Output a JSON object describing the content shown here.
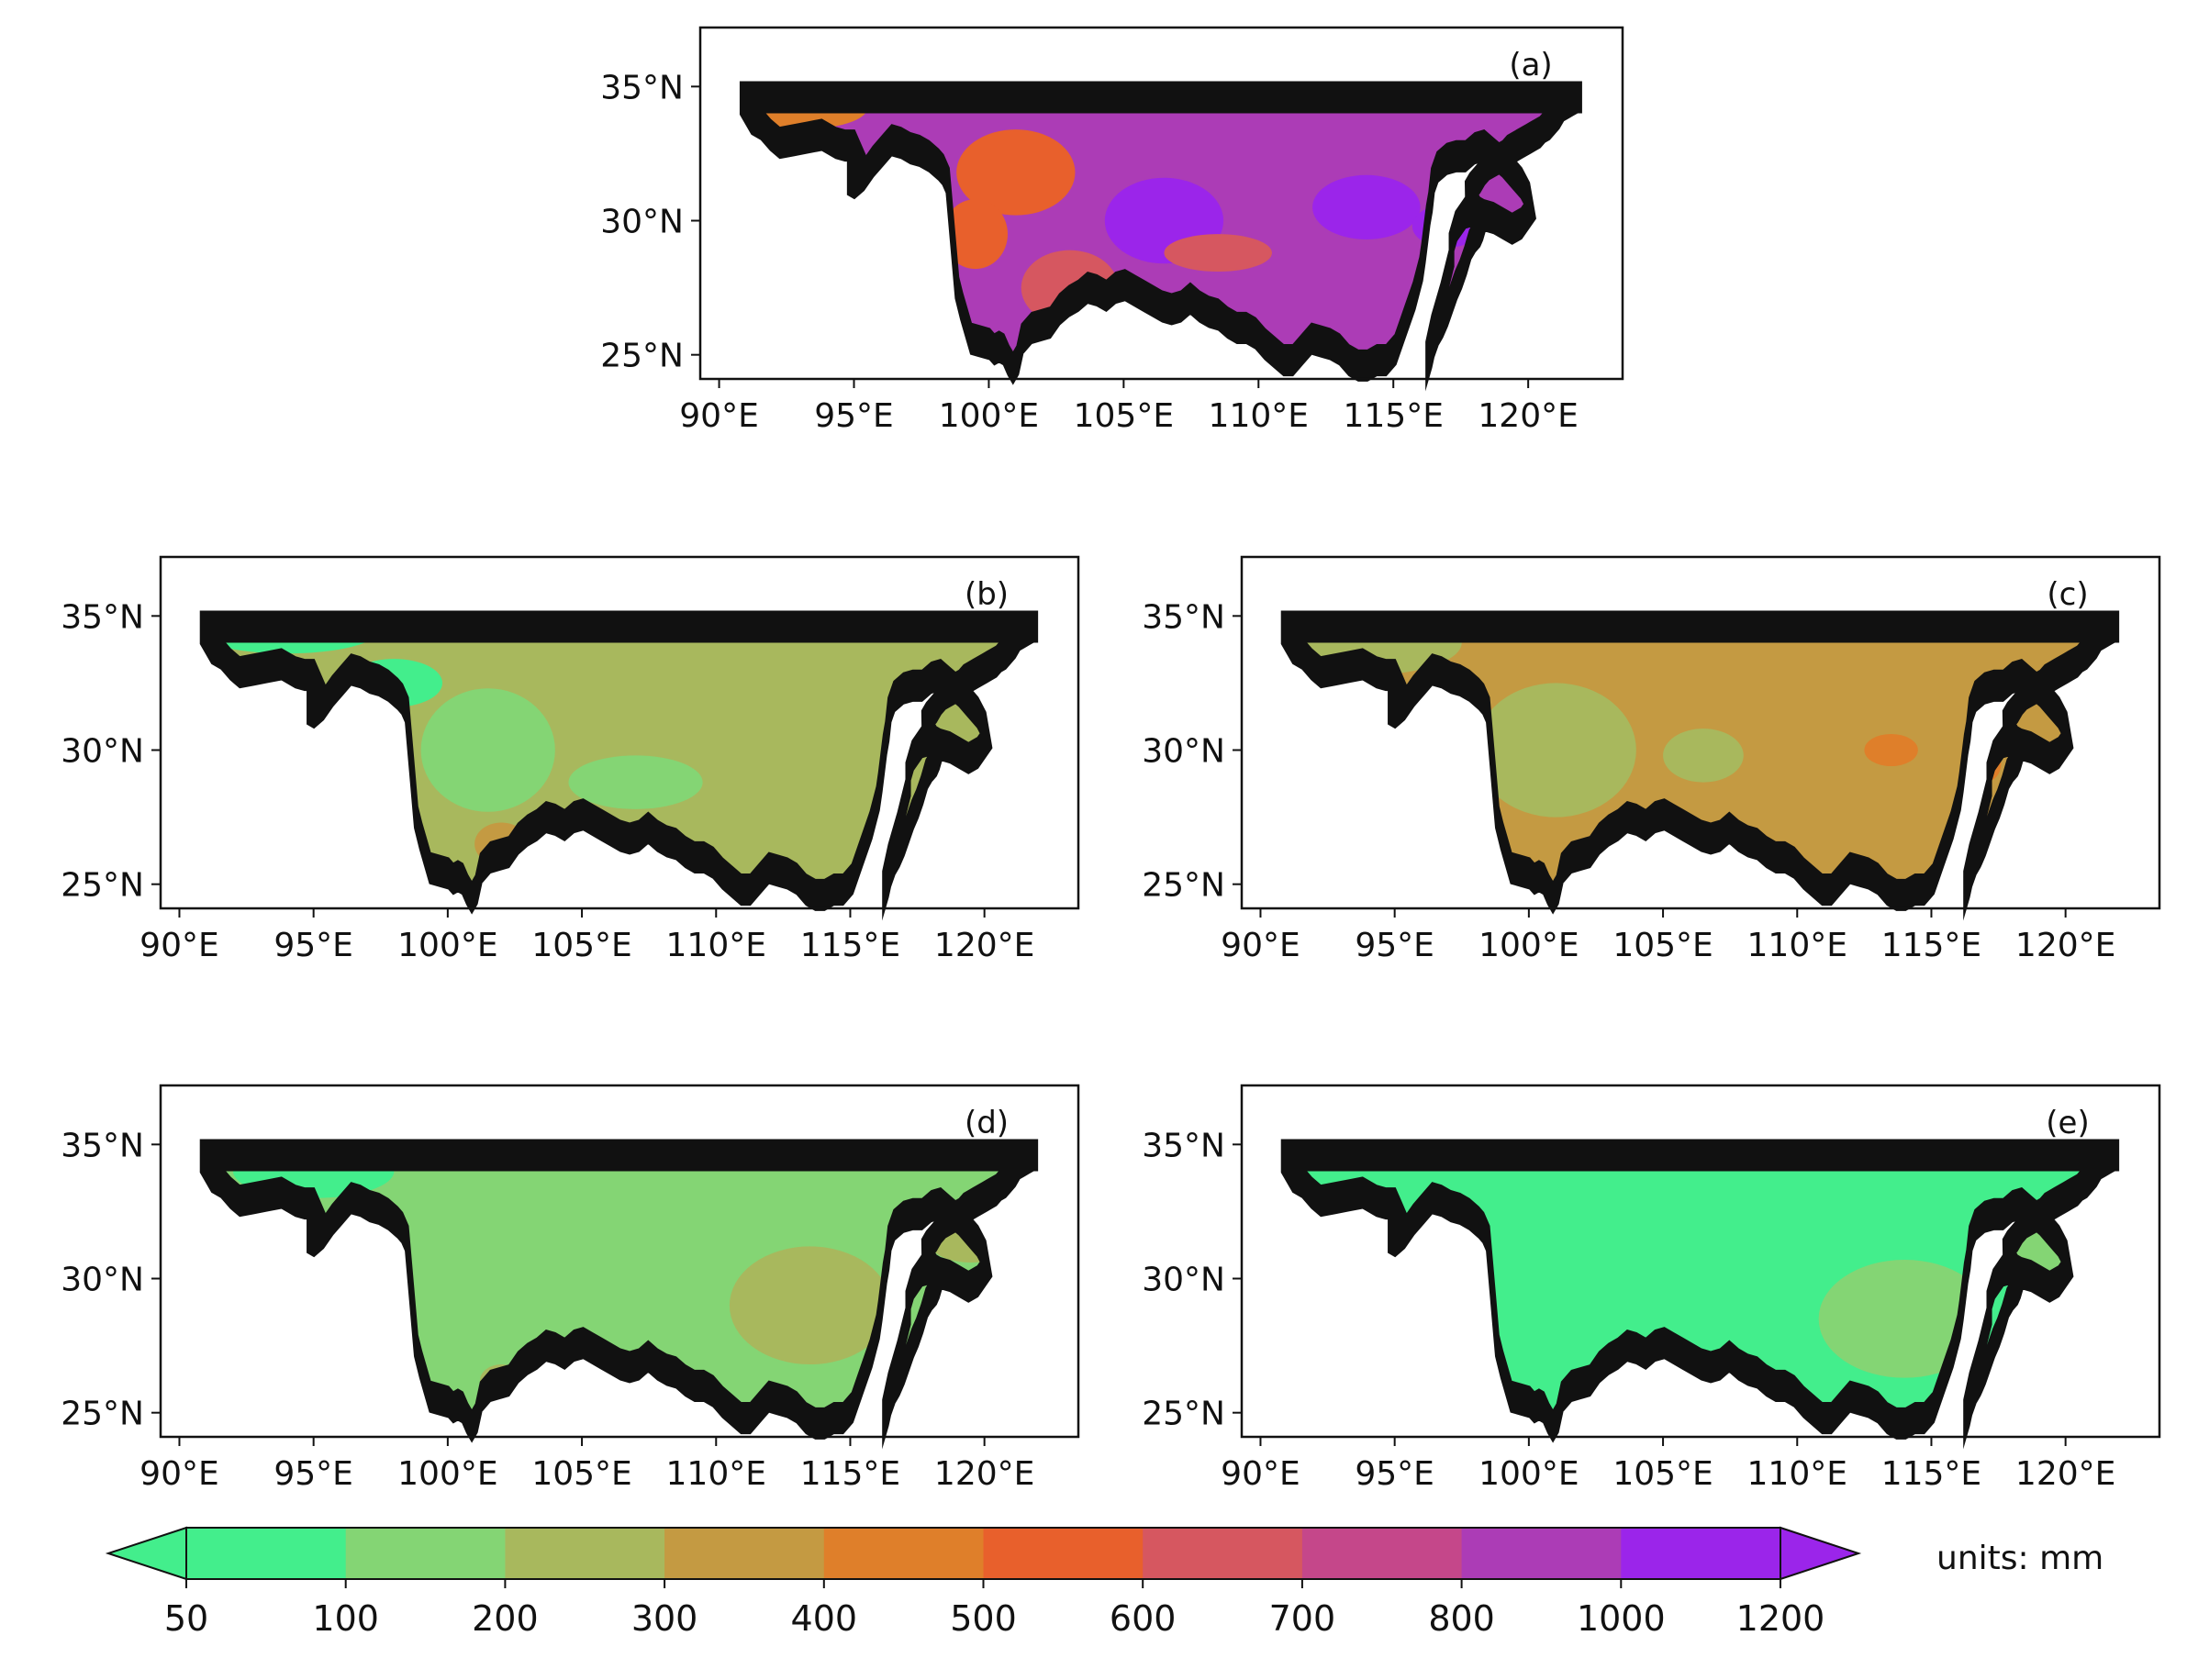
{
  "colors": {
    "levels": [
      "#43ee8c",
      "#84d574",
      "#a8b85d",
      "#c49a42",
      "#df7f2a",
      "#e8602c",
      "#d65760",
      "#c5478a",
      "#ac3cb6",
      "#9b25ea"
    ],
    "extend_min": "#43ee8c",
    "extend_max": "#9b25ea"
  },
  "axes": {
    "lon_ticks": [
      "90°E",
      "95°E",
      "100°E",
      "105°E",
      "110°E",
      "115°E",
      "120°E"
    ],
    "lat_ticks": [
      "35°N",
      "30°N",
      "25°N"
    ]
  },
  "panels": [
    {
      "id": "a",
      "label": "(a)",
      "base_level": 8,
      "regions": [
        {
          "level": 4,
          "lon": 93.0,
          "lat": 34.2,
          "rlon": 2.5,
          "rlat": 0.8
        },
        {
          "level": 5,
          "lon": 101.0,
          "lat": 31.8,
          "rlon": 2.2,
          "rlat": 1.6
        },
        {
          "level": 5,
          "lon": 99.5,
          "lat": 29.5,
          "rlon": 1.2,
          "rlat": 1.3
        },
        {
          "level": 6,
          "lon": 103.0,
          "lat": 27.5,
          "rlon": 1.8,
          "rlat": 1.4
        },
        {
          "level": 9,
          "lon": 106.5,
          "lat": 30.0,
          "rlon": 2.2,
          "rlat": 1.6
        },
        {
          "level": 6,
          "lon": 108.5,
          "lat": 28.8,
          "rlon": 2.0,
          "rlat": 0.7
        },
        {
          "level": 9,
          "lon": 114.0,
          "lat": 30.5,
          "rlon": 2.0,
          "rlat": 1.2
        },
        {
          "level": 9,
          "lon": 117.0,
          "lat": 29.8,
          "rlon": 1.3,
          "rlat": 0.8
        }
      ]
    },
    {
      "id": "b",
      "label": "(b)",
      "base_level": 2,
      "regions": [
        {
          "level": 0,
          "lon": 94.0,
          "lat": 34.5,
          "rlon": 3.5,
          "rlat": 0.9
        },
        {
          "level": 0,
          "lon": 98.0,
          "lat": 32.5,
          "rlon": 1.8,
          "rlat": 0.9
        },
        {
          "level": 1,
          "lon": 101.5,
          "lat": 30.0,
          "rlon": 2.5,
          "rlat": 2.3
        },
        {
          "level": 1,
          "lon": 107.0,
          "lat": 28.8,
          "rlon": 2.5,
          "rlat": 1.0
        },
        {
          "level": 3,
          "lon": 102.0,
          "lat": 26.5,
          "rlon": 1.0,
          "rlat": 0.8
        }
      ]
    },
    {
      "id": "c",
      "label": "(c)",
      "base_level": 3,
      "regions": [
        {
          "level": 2,
          "lon": 94.0,
          "lat": 34.0,
          "rlon": 3.5,
          "rlat": 1.2
        },
        {
          "level": 2,
          "lon": 101.0,
          "lat": 30.0,
          "rlon": 3.0,
          "rlat": 2.5
        },
        {
          "level": 2,
          "lon": 106.5,
          "lat": 29.8,
          "rlon": 1.5,
          "rlat": 1.0
        },
        {
          "level": 4,
          "lon": 113.5,
          "lat": 30.0,
          "rlon": 1.0,
          "rlat": 0.6
        },
        {
          "level": 4,
          "lon": 117.0,
          "lat": 29.5,
          "rlon": 0.6,
          "rlat": 0.7
        }
      ]
    },
    {
      "id": "d",
      "label": "(d)",
      "base_level": 1,
      "regions": [
        {
          "level": 0,
          "lon": 95.0,
          "lat": 34.0,
          "rlon": 3.0,
          "rlat": 1.0
        },
        {
          "level": 2,
          "lon": 113.5,
          "lat": 29.0,
          "rlon": 3.0,
          "rlat": 2.2
        },
        {
          "level": 2,
          "lon": 119.5,
          "lat": 31.3,
          "rlon": 1.5,
          "rlat": 0.7
        },
        {
          "level": 2,
          "lon": 102.0,
          "lat": 26.2,
          "rlon": 0.8,
          "rlat": 0.6
        }
      ]
    },
    {
      "id": "e",
      "label": "(e)",
      "base_level": 0,
      "regions": [
        {
          "level": 1,
          "lon": 114.0,
          "lat": 28.5,
          "rlon": 3.2,
          "rlat": 2.2
        },
        {
          "level": 1,
          "lon": 118.5,
          "lat": 31.0,
          "rlon": 2.0,
          "rlat": 0.9
        }
      ]
    }
  ],
  "colorbar": {
    "tick_labels": [
      "50",
      "100",
      "200",
      "300",
      "400",
      "500",
      "600",
      "700",
      "800",
      "1000",
      "1200"
    ],
    "units_label": "units: mm"
  }
}
